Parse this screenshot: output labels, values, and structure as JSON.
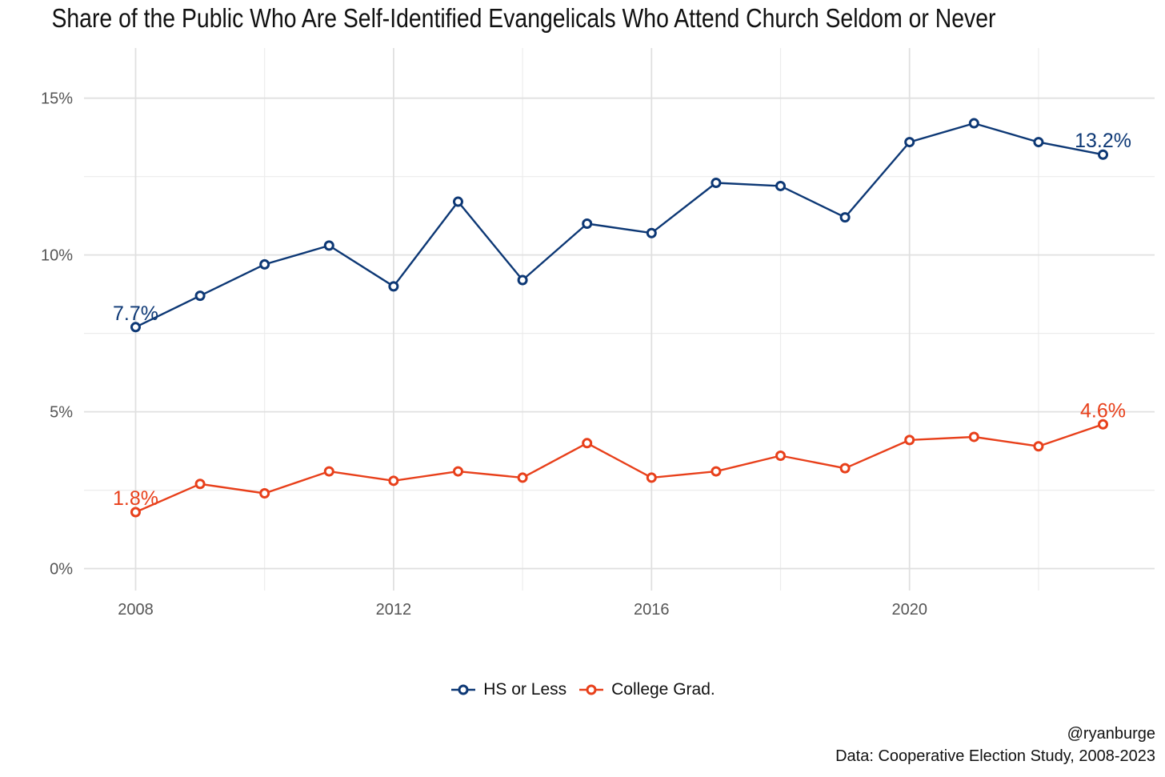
{
  "chart_data": {
    "type": "line",
    "title": "Share of the Public Who Are Self-Identified Evangelicals Who Attend Church Seldom or Never",
    "xlabel": "",
    "ylabel": "",
    "x": [
      2008,
      2009,
      2010,
      2011,
      2012,
      2013,
      2014,
      2015,
      2016,
      2017,
      2018,
      2019,
      2020,
      2021,
      2022,
      2023
    ],
    "x_ticks": [
      "2008",
      "2012",
      "2016",
      "2020"
    ],
    "x_tick_values": [
      2008,
      2012,
      2016,
      2020
    ],
    "xlim": [
      2007.2,
      2023.8
    ],
    "y_ticks": [
      "0%",
      "5%",
      "10%",
      "15%"
    ],
    "y_tick_values": [
      0,
      5,
      10,
      15
    ],
    "ylim": [
      -0.7,
      16.6
    ],
    "grid": true,
    "legend_position": "bottom",
    "series": [
      {
        "name": "HS or Less",
        "color": "#0d3875",
        "values": [
          7.7,
          8.7,
          9.7,
          10.3,
          9.0,
          11.7,
          9.2,
          11.0,
          10.7,
          12.3,
          12.2,
          11.2,
          13.6,
          14.2,
          13.6,
          13.2
        ],
        "start_label": "7.7%",
        "end_label": "13.2%"
      },
      {
        "name": "College Grad.",
        "color": "#e8401b",
        "values": [
          1.8,
          2.7,
          2.4,
          3.1,
          2.8,
          3.1,
          2.9,
          4.0,
          2.9,
          3.1,
          3.6,
          3.2,
          4.1,
          4.2,
          3.9,
          4.6
        ],
        "start_label": "1.8%",
        "end_label": "4.6%"
      }
    ]
  },
  "caption": {
    "handle": "@ryanburge",
    "source": "Data: Cooperative Election Study, 2008-2023"
  }
}
